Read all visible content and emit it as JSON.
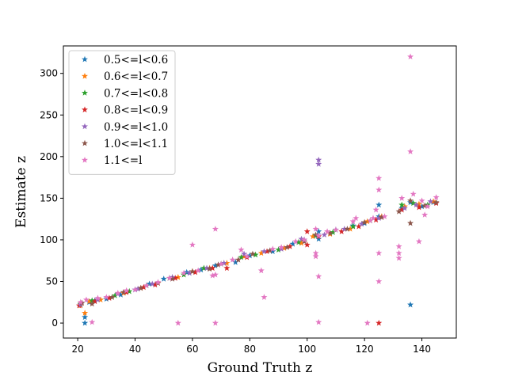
{
  "chart_data": {
    "type": "scatter",
    "title": "",
    "xlabel": "Ground Truth z",
    "ylabel": "Estimate z",
    "xlim": [
      15,
      152
    ],
    "ylim": [
      -18,
      333
    ],
    "xticks": [
      20,
      40,
      60,
      80,
      100,
      120,
      140
    ],
    "yticks": [
      0,
      50,
      100,
      150,
      200,
      250,
      300
    ],
    "grid": false,
    "legend_position": "upper-left",
    "marker": "star",
    "series": [
      {
        "name": "0.5<=l<0.6",
        "color": "#1f77b4",
        "points": [
          [
            22.5,
            0
          ],
          [
            22.5,
            7
          ],
          [
            21,
            22
          ],
          [
            24,
            25
          ],
          [
            26,
            27
          ],
          [
            30,
            29
          ],
          [
            35,
            34
          ],
          [
            40,
            40
          ],
          [
            45,
            47
          ],
          [
            50,
            53
          ],
          [
            58,
            61
          ],
          [
            63,
            64
          ],
          [
            68,
            69
          ],
          [
            75,
            73
          ],
          [
            80,
            81
          ],
          [
            88,
            86
          ],
          [
            95,
            95
          ],
          [
            99,
            100
          ],
          [
            104,
            101
          ],
          [
            104,
            110
          ],
          [
            110,
            112
          ],
          [
            116,
            117
          ],
          [
            120,
            120
          ],
          [
            125,
            142
          ],
          [
            125,
            128
          ],
          [
            133,
            138
          ],
          [
            136,
            22
          ],
          [
            136,
            145
          ],
          [
            140,
            140
          ],
          [
            144,
            145
          ]
        ]
      },
      {
        "name": "0.6<=l<0.7",
        "color": "#ff7f0e",
        "points": [
          [
            22.5,
            12
          ],
          [
            21,
            21
          ],
          [
            24,
            26
          ],
          [
            28,
            28
          ],
          [
            36,
            36
          ],
          [
            42,
            42
          ],
          [
            48,
            48
          ],
          [
            55,
            55
          ],
          [
            60,
            62
          ],
          [
            66,
            66
          ],
          [
            72,
            72
          ],
          [
            78,
            80
          ],
          [
            84,
            84
          ],
          [
            92,
            90
          ],
          [
            98,
            96
          ],
          [
            102,
            104
          ],
          [
            108,
            107
          ],
          [
            115,
            113
          ],
          [
            121,
            122
          ],
          [
            126,
            128
          ],
          [
            134,
            140
          ],
          [
            139,
            143
          ],
          [
            144,
            146
          ]
        ]
      },
      {
        "name": "0.7<=l<0.8",
        "color": "#2ca02c",
        "points": [
          [
            21,
            23
          ],
          [
            25,
            27
          ],
          [
            33,
            33
          ],
          [
            38,
            38
          ],
          [
            44,
            45
          ],
          [
            52,
            54
          ],
          [
            57,
            58
          ],
          [
            64,
            66
          ],
          [
            70,
            71
          ],
          [
            77,
            79
          ],
          [
            82,
            82
          ],
          [
            90,
            88
          ],
          [
            97,
            97
          ],
          [
            103,
            105
          ],
          [
            109,
            109
          ],
          [
            116,
            116
          ],
          [
            122,
            123
          ],
          [
            133,
            142
          ],
          [
            137,
            144
          ],
          [
            142,
            142
          ]
        ]
      },
      {
        "name": "0.8<=l<0.9",
        "color": "#d62728",
        "points": [
          [
            20.5,
            21
          ],
          [
            26,
            26
          ],
          [
            31,
            30
          ],
          [
            37,
            37
          ],
          [
            43,
            43
          ],
          [
            47,
            46
          ],
          [
            54,
            54
          ],
          [
            61,
            61
          ],
          [
            67,
            66
          ],
          [
            72,
            66
          ],
          [
            79,
            79
          ],
          [
            86,
            86
          ],
          [
            94,
            92
          ],
          [
            100,
            94
          ],
          [
            100,
            110
          ],
          [
            104,
            104
          ],
          [
            112,
            110
          ],
          [
            118,
            116
          ],
          [
            124,
            124
          ],
          [
            125,
            0
          ],
          [
            133,
            136
          ],
          [
            139,
            139
          ],
          [
            145,
            144
          ]
        ]
      },
      {
        "name": "0.9<=l<1.0",
        "color": "#9467bd",
        "points": [
          [
            21,
            22
          ],
          [
            27,
            28
          ],
          [
            34,
            35
          ],
          [
            41,
            41
          ],
          [
            46,
            47
          ],
          [
            53,
            55
          ],
          [
            59,
            60
          ],
          [
            65,
            66
          ],
          [
            71,
            72
          ],
          [
            78,
            83
          ],
          [
            85,
            86
          ],
          [
            91,
            89
          ],
          [
            98,
            101
          ],
          [
            104,
            196
          ],
          [
            104,
            191
          ],
          [
            106,
            106
          ],
          [
            113,
            113
          ],
          [
            119,
            119
          ],
          [
            125,
            126
          ],
          [
            134,
            138
          ],
          [
            138,
            142
          ],
          [
            143,
            146
          ]
        ]
      },
      {
        "name": "1.0<=l<1.1",
        "color": "#8c564b",
        "points": [
          [
            21.5,
            24
          ],
          [
            25,
            23
          ],
          [
            32,
            31
          ],
          [
            36,
            37
          ],
          [
            42,
            42
          ],
          [
            48,
            48
          ],
          [
            53,
            53
          ],
          [
            60,
            62
          ],
          [
            66,
            65
          ],
          [
            69,
            70
          ],
          [
            76,
            76
          ],
          [
            81,
            83
          ],
          [
            87,
            87
          ],
          [
            93,
            91
          ],
          [
            99,
            98
          ],
          [
            103,
            106
          ],
          [
            108,
            108
          ],
          [
            114,
            113
          ],
          [
            120,
            121
          ],
          [
            126,
            127
          ],
          [
            132,
            134
          ],
          [
            136,
            120
          ],
          [
            136,
            147
          ],
          [
            141,
            141
          ],
          [
            145,
            145
          ]
        ]
      },
      {
        "name": "1.1<=l",
        "color": "#e377c2",
        "points": [
          [
            21,
            25
          ],
          [
            23,
            28
          ],
          [
            25,
            1
          ],
          [
            27,
            30
          ],
          [
            30,
            31
          ],
          [
            34,
            36
          ],
          [
            37,
            39
          ],
          [
            40,
            40
          ],
          [
            44,
            45
          ],
          [
            48,
            49
          ],
          [
            52,
            54
          ],
          [
            55,
            0
          ],
          [
            57,
            60
          ],
          [
            60,
            94
          ],
          [
            62,
            63
          ],
          [
            67,
            57
          ],
          [
            68,
            58
          ],
          [
            68,
            113
          ],
          [
            68,
            0
          ],
          [
            70,
            71
          ],
          [
            74,
            76
          ],
          [
            77,
            88
          ],
          [
            79,
            80
          ],
          [
            84,
            63
          ],
          [
            85,
            31
          ],
          [
            88,
            89
          ],
          [
            91,
            91
          ],
          [
            96,
            98
          ],
          [
            99,
            100
          ],
          [
            103,
            113
          ],
          [
            103,
            84
          ],
          [
            103,
            80
          ],
          [
            104,
            56
          ],
          [
            104,
            1
          ],
          [
            104,
            105
          ],
          [
            107,
            110
          ],
          [
            110,
            112
          ],
          [
            116,
            122
          ],
          [
            117,
            126
          ],
          [
            121,
            0
          ],
          [
            122,
            123
          ],
          [
            123,
            126
          ],
          [
            124,
            136
          ],
          [
            125,
            174
          ],
          [
            125,
            160
          ],
          [
            125,
            84
          ],
          [
            125,
            50
          ],
          [
            127,
            128
          ],
          [
            132,
            92
          ],
          [
            132,
            84
          ],
          [
            132,
            78
          ],
          [
            133,
            150
          ],
          [
            136,
            320
          ],
          [
            136,
            206
          ],
          [
            137,
            155
          ],
          [
            139,
            98
          ],
          [
            140,
            147
          ],
          [
            141,
            130
          ],
          [
            142,
            140
          ],
          [
            145,
            151
          ]
        ]
      }
    ]
  }
}
